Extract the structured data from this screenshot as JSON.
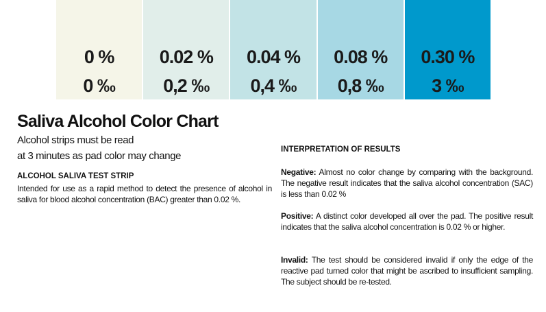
{
  "swatches": [
    {
      "percent": "0 %",
      "permille": "0 ‰",
      "color": "#f5f5e8"
    },
    {
      "percent": "0.02 %",
      "permille": "0,2 ‰",
      "color": "#e1eeea"
    },
    {
      "percent": "0.04 %",
      "permille": "0,4 ‰",
      "color": "#c2e3e6"
    },
    {
      "percent": "0.08 %",
      "permille": "0,8 ‰",
      "color": "#a7d8e4"
    },
    {
      "percent": "0.30 %",
      "permille": "3 ‰",
      "color": "#0099cc"
    }
  ],
  "header": {
    "title": "Saliva Alcohol Color Chart",
    "subtitle_lines": [
      "Alcohol strips must be read",
      "at 3 minutes as pad color may change"
    ]
  },
  "left": {
    "heading": "ALCOHOL SALIVA TEST STRIP",
    "text": "Intended for use as a rapid method to detect the presence of alcohol in saliva for blood alcohol concentration (BAC) greater than 0.02 %."
  },
  "right": {
    "heading": "INTERPRETATION OF RESULTS",
    "paragraphs": [
      {
        "label": "Negative:",
        "text": "Almost no color change by comparing with the background. The negative result indicates that the saliva alcohol concentration (SAC) is less than 0.02 %"
      },
      {
        "label": "Positive:",
        "text": "A distinct color developed all over the pad. The positive result indicates that the saliva alcohol concentration is 0.02 % or higher."
      },
      {
        "label": "Invalid:",
        "text": "The test should be considered invalid if only the edge of the reactive pad turned color that might be ascribed to insufficient sampling. The subject should be re-tested."
      }
    ]
  }
}
